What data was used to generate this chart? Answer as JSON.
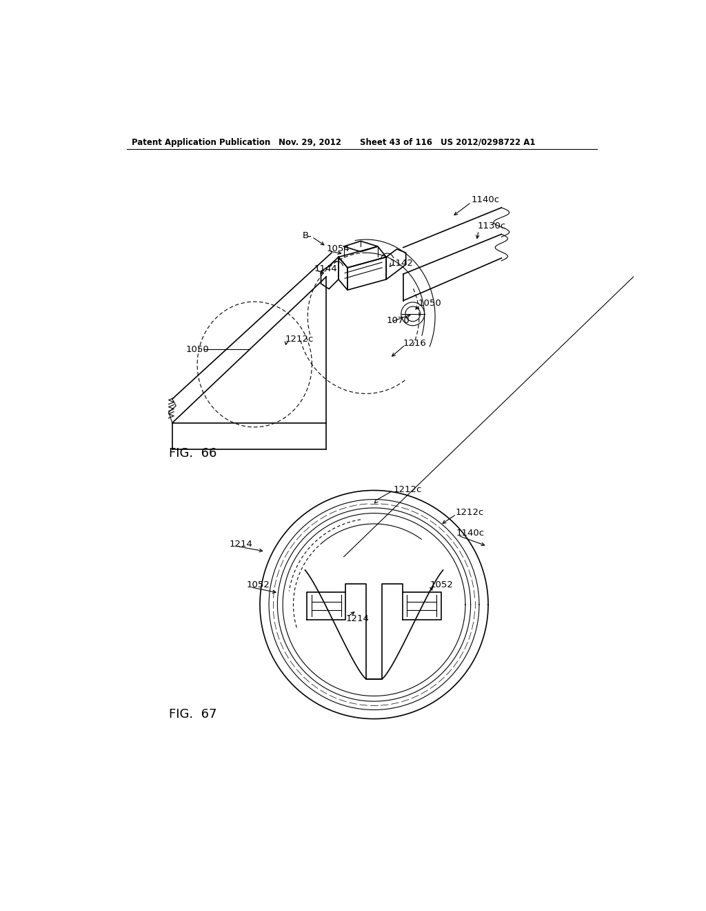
{
  "bg_color": "#ffffff",
  "header_text": "Patent Application Publication",
  "header_date": "Nov. 29, 2012",
  "header_sheet": "Sheet 43 of 116",
  "header_patent": "US 2012/0298722 A1",
  "fig66_label": "FIG.  66",
  "fig67_label": "FIG.  67",
  "line_color": "#000000"
}
